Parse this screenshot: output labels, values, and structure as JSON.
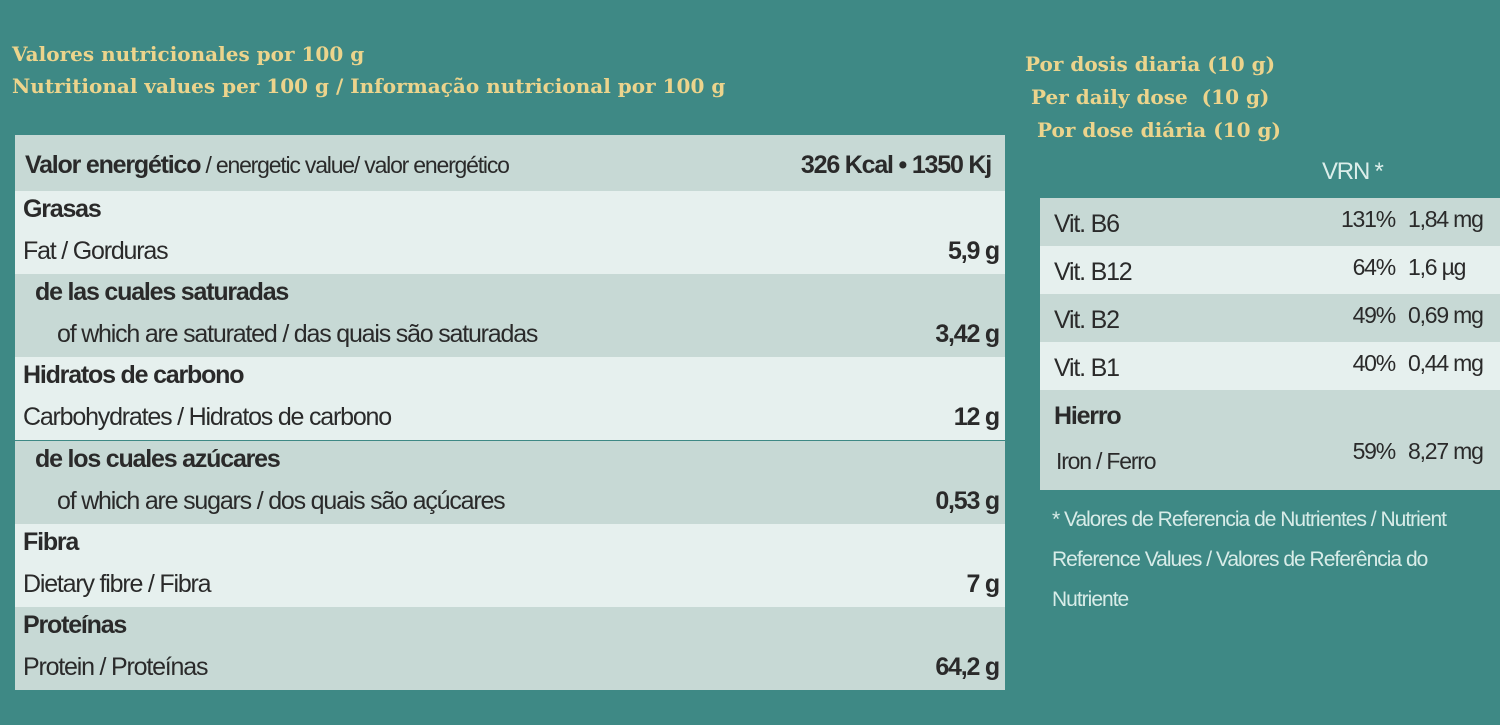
{
  "header": {
    "lines": [
      "Valores nutricionales por 100 g",
      "Nutritional values per 100 g / Informação nutricional por 100 g"
    ]
  },
  "daily": {
    "lines": [
      "Por dosis diaria (10 g)",
      "Per daily dose  (10 g)",
      "Por dose diária (10 g)"
    ]
  },
  "table": {
    "energy": {
      "title": "Valor energético",
      "subtitle": " / energetic value/ valor energético",
      "value": "326 Kcal • 1350 Kj"
    },
    "rows": [
      {
        "title": "Grasas",
        "subtitle": "Fat / Gorduras",
        "value": "5,9 g"
      },
      {
        "title": "de las cuales saturadas",
        "subtitle": "of which are saturated / das quais são saturadas",
        "value": "3,42 g"
      },
      {
        "title": "Hidratos de carbono",
        "subtitle": "Carbohydrates / Hidratos de carbono",
        "value": "12 g"
      },
      {
        "title": "de los cuales azúcares",
        "subtitle": "of which are sugars / dos quais são açúcares",
        "value": "0,53 g"
      },
      {
        "title": "Fibra",
        "subtitle": "Dietary fibre / Fibra",
        "value": "7 g"
      },
      {
        "title": "Proteínas",
        "subtitle": "Protein / Proteínas",
        "value": "64,2 g"
      }
    ]
  },
  "vitamins": {
    "header": "VRN *",
    "rows": [
      {
        "name": "Vit. B6",
        "pct": "131%",
        "amount": "1,84 mg"
      },
      {
        "name": "Vit. B12",
        "pct": "64%",
        "amount": "1,6 µg"
      },
      {
        "name": "Vit. B2",
        "pct": "49%",
        "amount": "0,69 mg"
      },
      {
        "name": "Vit. B1",
        "pct": "40%",
        "amount": "0,44 mg"
      },
      {
        "name": "Hierro",
        "subtitle": "Iron / Ferro",
        "pct": "59%",
        "amount": "8,27 mg"
      }
    ],
    "footnote": "* Valores de Referencia de Nutrientes / Nutrient Reference Values / Valores de Referência do Nutriente"
  }
}
